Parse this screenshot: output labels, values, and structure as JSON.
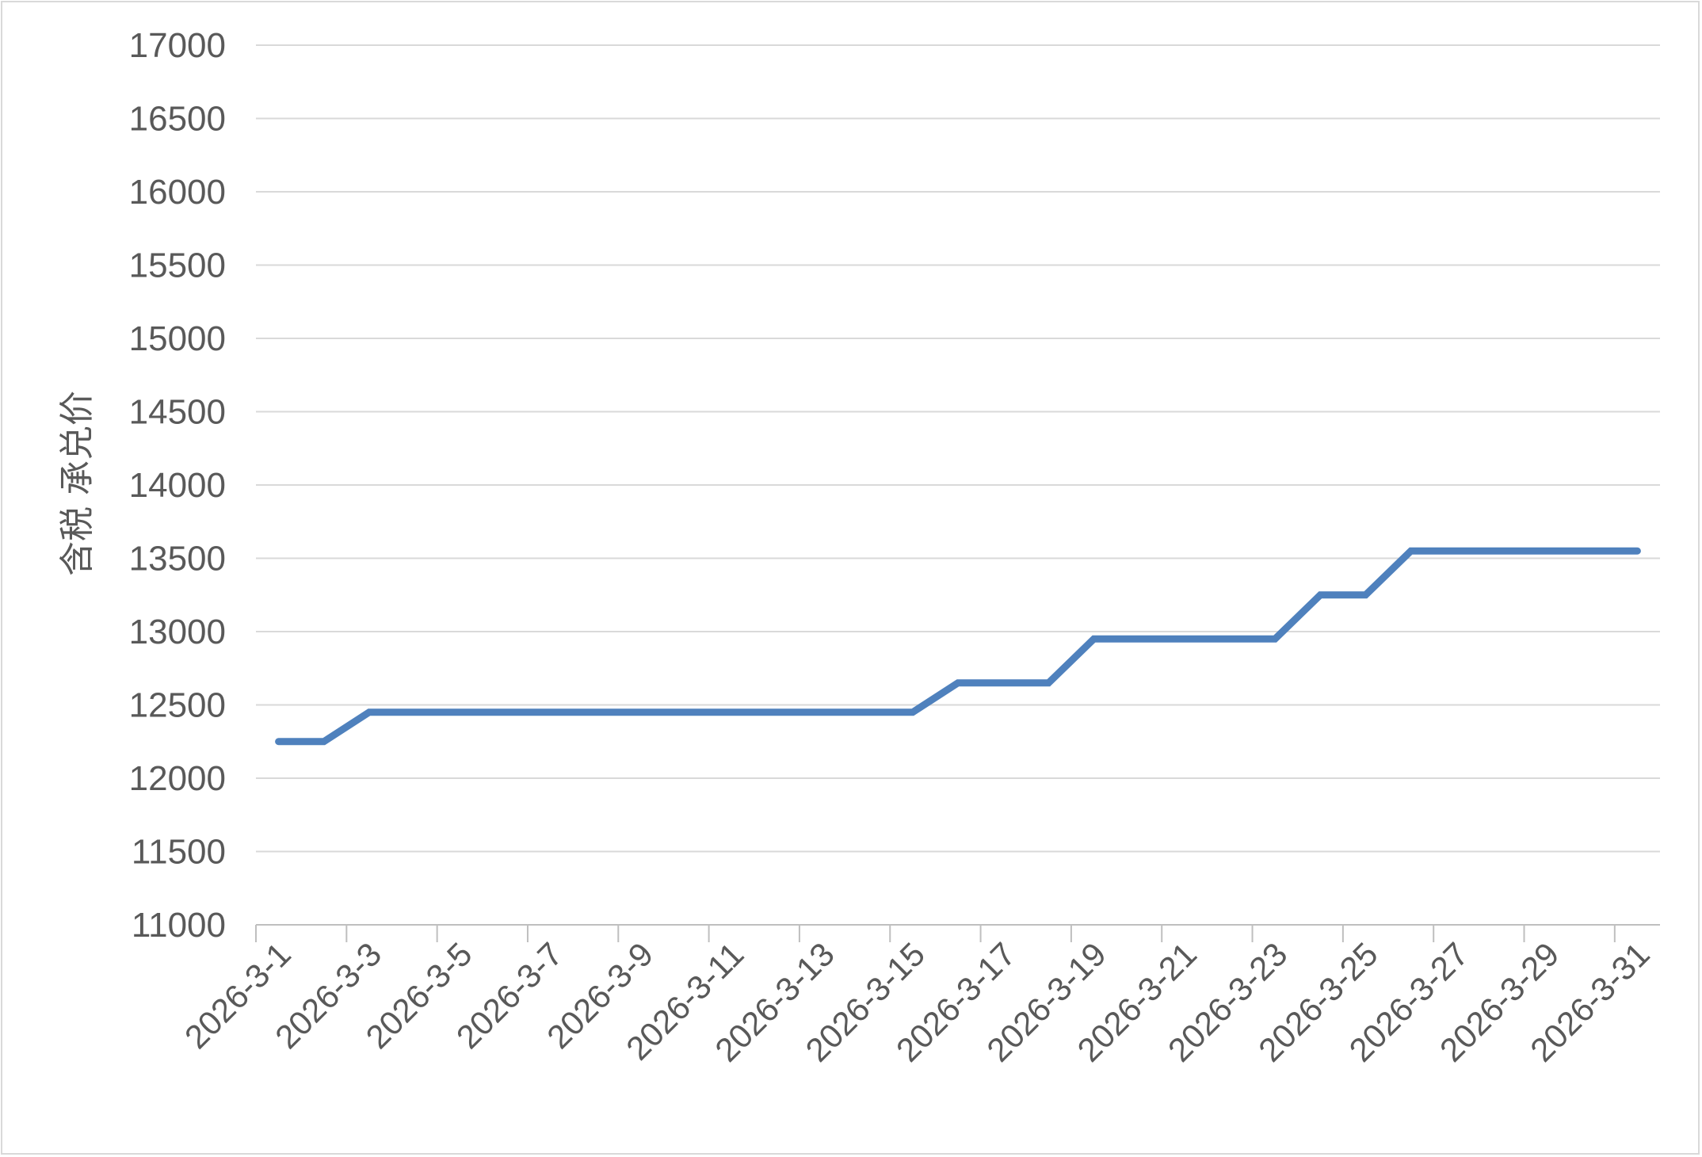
{
  "chart_data": {
    "type": "line",
    "title": "",
    "xlabel": "",
    "ylabel": "含税 承兑价",
    "ylim": [
      11000,
      17000
    ],
    "y_ticks": [
      11000,
      11500,
      12000,
      12500,
      13000,
      13500,
      14000,
      14500,
      15000,
      15500,
      16000,
      16500,
      17000
    ],
    "grid": true,
    "legend": "none",
    "x_tick_labels": [
      "2026-3-1",
      "2026-3-3",
      "2026-3-5",
      "2026-3-7",
      "2026-3-9",
      "2026-3-11",
      "2026-3-13",
      "2026-3-15",
      "2026-3-17",
      "2026-3-19",
      "2026-3-21",
      "2026-3-23",
      "2026-3-25",
      "2026-3-27",
      "2026-3-29",
      "2026-3-31"
    ],
    "x": [
      "2026-3-1",
      "2026-3-2",
      "2026-3-3",
      "2026-3-4",
      "2026-3-5",
      "2026-3-6",
      "2026-3-7",
      "2026-3-8",
      "2026-3-9",
      "2026-3-10",
      "2026-3-11",
      "2026-3-12",
      "2026-3-13",
      "2026-3-14",
      "2026-3-15",
      "2026-3-16",
      "2026-3-17",
      "2026-3-18",
      "2026-3-19",
      "2026-3-20",
      "2026-3-21",
      "2026-3-22",
      "2026-3-23",
      "2026-3-24",
      "2026-3-25",
      "2026-3-26",
      "2026-3-27",
      "2026-3-28",
      "2026-3-29",
      "2026-3-30",
      "2026-3-31"
    ],
    "series": [
      {
        "values": [
          12250,
          12250,
          12450,
          12450,
          12450,
          12450,
          12450,
          12450,
          12450,
          12450,
          12450,
          12450,
          12450,
          12450,
          12450,
          12650,
          12650,
          12650,
          12950,
          12950,
          12950,
          12950,
          12950,
          13250,
          13250,
          13550,
          13550,
          13550,
          13550,
          13550,
          13550
        ],
        "color": "#4f81bd"
      }
    ],
    "colors": {
      "line": "#4f81bd",
      "grid": "#d9d9d9",
      "text": "#595959"
    }
  }
}
